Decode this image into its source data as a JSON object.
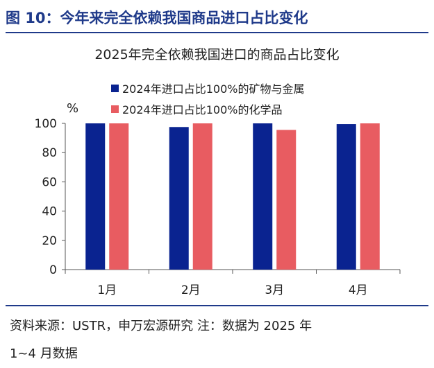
{
  "figure_title": "图 10：今年来完全依赖我国商品进口占比变化",
  "chart_data": {
    "type": "bar",
    "title": "2025年完全依赖我国进口的商品占比变化",
    "ylabel": "%",
    "xlabel": "",
    "categories": [
      "1月",
      "2月",
      "3月",
      "4月"
    ],
    "series": [
      {
        "name": "2024年进口占比100%的矿物与金属",
        "color": "#0a2390",
        "values": [
          100,
          97.5,
          100,
          99.5
        ]
      },
      {
        "name": "2024年进口占比100%的化学品",
        "color": "#e85c61",
        "values": [
          100,
          100,
          95.5,
          100
        ]
      }
    ],
    "ylim": [
      0,
      100
    ],
    "yticks": [
      "0",
      "20",
      "40",
      "60",
      "80",
      "100"
    ],
    "grid": false,
    "legend_position": "top"
  },
  "footer": {
    "line1": "资料来源：USTR，申万宏源研究 注：数据为 2025 年",
    "line2": "1~4 月数据"
  }
}
